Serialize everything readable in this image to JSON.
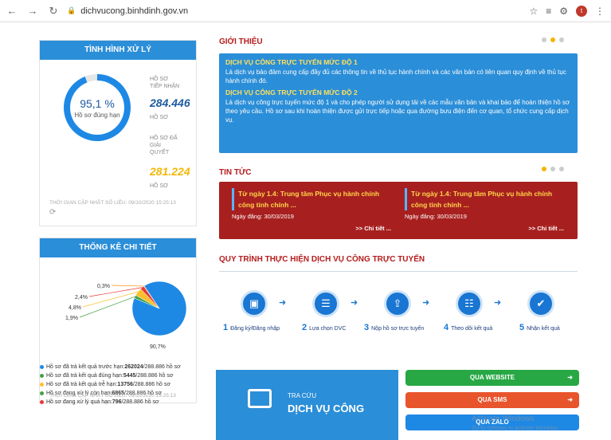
{
  "browser": {
    "url": "dichvucong.binhdinh.gov.vn",
    "avatar_letter": "t"
  },
  "status_box": {
    "title": "TÌNH HÌNH XỬ LÝ",
    "percent": "95,1 %",
    "percent_label": "Hồ sơ đúng hạn",
    "received_label_1": "HỒ SƠ",
    "received_label_2": "TIẾP NHẬN",
    "received_value": "284.446",
    "received_unit": "HỒ SƠ",
    "resolved_label_1": "HỒ SƠ ĐÃ",
    "resolved_label_2": "GIẢI",
    "resolved_label_3": "QUYẾT",
    "resolved_value": "281.224",
    "resolved_unit": "HỒ SƠ",
    "updated": "THỜI GIAN CẬP NHẬT SỐ LIỆU: 09/10/2020 15:25:13"
  },
  "detail_box": {
    "title": "THỐNG KÊ CHI TIẾT",
    "chart_data": {
      "type": "pie",
      "slices": [
        {
          "label": "90,7%",
          "value": 90.7,
          "color": "#1e88e5"
        },
        {
          "label": "1,9%",
          "value": 1.9,
          "color": "#43a047"
        },
        {
          "label": "4,8%",
          "value": 4.8,
          "color": "#fbc02d"
        },
        {
          "label": "2,4%",
          "value": 2.4,
          "color": "#e53935"
        },
        {
          "label": "0,3%",
          "value": 0.3,
          "color": "#fb8c00"
        }
      ]
    },
    "legend": [
      {
        "text": "Hồ sơ đã trả kết quả trước hạn: ",
        "value": "262024",
        "total": " /288.886 hồ sơ",
        "color": "#1e88e5"
      },
      {
        "text": "Hồ sơ đã trả kết quả đúng hạn: ",
        "value": "5445",
        "total": " /288.886 hồ sơ",
        "color": "#43a047"
      },
      {
        "text": "Hồ sơ đã trả kết quả trễ hạn: ",
        "value": "13756",
        "total": " /288.886 hồ sơ",
        "color": "#fbc02d"
      },
      {
        "text": "Hồ sơ đang xử lý còn hạn: ",
        "value": "6865",
        "total": " /288.886 hồ sơ",
        "color": "#43a047"
      },
      {
        "text": "Hồ sơ đang xử lý quá hạn: ",
        "value": "796",
        "total": " /288.886 hồ sơ",
        "color": "#e53935"
      }
    ],
    "updated": "THỜI GIAN CẬP NHẬT SỐ LIỆU: 09/10/2020 15:25:13"
  },
  "intro": {
    "title": "GIỚI THIỆU",
    "h1": "DỊCH VỤ CÔNG TRỰC TUYẾN MỨC ĐỘ 1",
    "p1": "Là dịch vụ bảo đảm cung cấp đầy đủ các thông tin về thủ tục hành chính và các văn bản có liên quan quy định về thủ tục hành chính đó.",
    "h2": "DỊCH VỤ CÔNG TRỰC TUYẾN MỨC ĐỘ 2",
    "p2": "Là dịch vụ công trực tuyến mức độ 1 và cho phép người sử dụng tải về các mẫu văn bản và khai báo để hoàn thiện hồ sơ theo yêu cầu. Hồ sơ sau khi hoàn thiện được gửi trực tiếp hoặc qua đường bưu điện đến cơ quan, tổ chức cung cấp dịch vụ."
  },
  "news": {
    "title": "TIN TỨC",
    "items": [
      {
        "title": "Từ ngày 1.4: Trung tâm Phục vụ hành chính công tỉnh chính ...",
        "date": "Ngày đăng: 30/03/2019",
        "more": ">> Chi tiết ..."
      },
      {
        "title": "Từ ngày 1.4: Trung tâm Phục vụ hành chính công tỉnh chính ...",
        "date": "Ngày đăng: 30/03/2019",
        "more": ">> Chi tiết ..."
      }
    ]
  },
  "process": {
    "title": "QUY TRÌNH THỰC HIỆN DỊCH VỤ CÔNG TRỰC TUYẾN",
    "steps": [
      {
        "num": "1",
        "label": "Đăng ký/Đăng nhập"
      },
      {
        "num": "2",
        "label": "Lựa chọn DVC"
      },
      {
        "num": "3",
        "label": "Nộp hồ sơ trực tuyến"
      },
      {
        "num": "4",
        "label": "Theo dõi kết quả"
      },
      {
        "num": "5",
        "label": "Nhận kết quả"
      }
    ]
  },
  "lookup": {
    "line1": "TRA CỨU",
    "line2": "DỊCH VỤ CÔNG"
  },
  "channels": [
    {
      "label": "QUA WEBSITE",
      "color": "#27a844"
    },
    {
      "label": "QUA SMS",
      "color": "#e8542b"
    },
    {
      "label": "QUA ZALO",
      "color": "#1e88e5"
    }
  ],
  "watermark": {
    "line1": "Activate Windows",
    "line2": "Go to Settings to activate Windows."
  }
}
